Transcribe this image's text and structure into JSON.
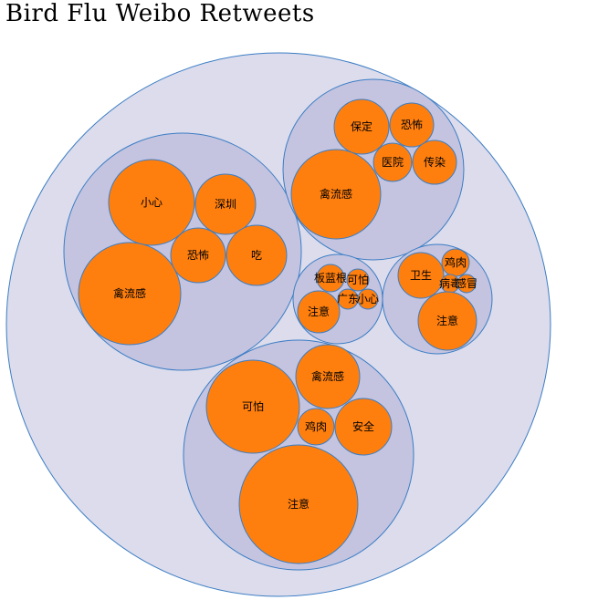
{
  "title": "Bird Flu Weibo Retweets",
  "colors": {
    "root_fill": "#dcdcec",
    "group_fill": "#c4c4e0",
    "leaf_fill": "#ff7f0e",
    "stroke": "#3b7dc4"
  },
  "groups": [
    {
      "leaves": [
        "小心",
        "深圳",
        "恐怖",
        "吃",
        "禽流感"
      ]
    },
    {
      "leaves": [
        "保定",
        "恐怖",
        "医院",
        "传染",
        "禽流感"
      ]
    },
    {
      "leaves": [
        "板蓝根",
        "可怕",
        "广东",
        "小心",
        "注意"
      ]
    },
    {
      "leaves": [
        "卫生",
        "鸡肉",
        "病毒",
        "感冒",
        "注意"
      ]
    },
    {
      "leaves": [
        "禽流感",
        "可怕",
        "鸡肉",
        "安全",
        "注意"
      ]
    }
  ]
}
